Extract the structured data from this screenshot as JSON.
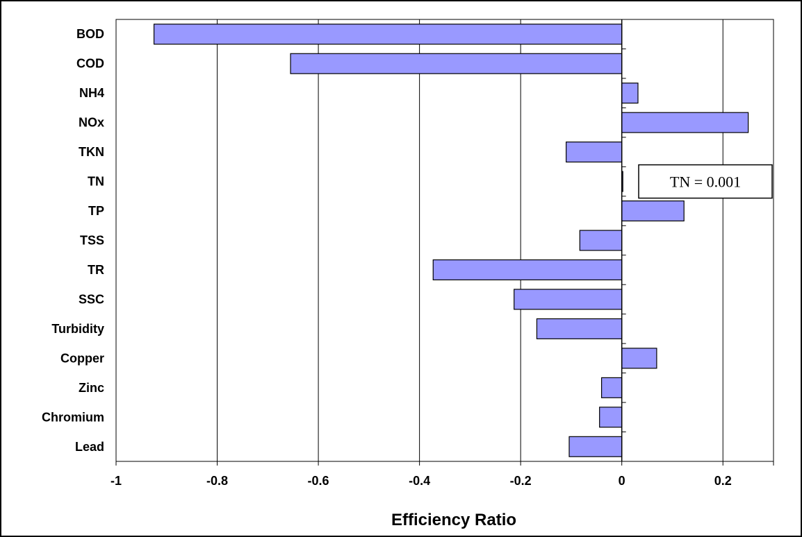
{
  "chart_data": {
    "type": "bar",
    "orientation": "horizontal",
    "categories": [
      "BOD",
      "COD",
      "NH4",
      "NOx",
      "TKN",
      "TN",
      "TP",
      "TSS",
      "TR",
      "SSC",
      "Turbidity",
      "Copper",
      "Zinc",
      "Chromium",
      "Lead"
    ],
    "values": [
      -0.925,
      -0.655,
      0.032,
      0.25,
      -0.11,
      0.001,
      0.123,
      -0.083,
      -0.373,
      -0.213,
      -0.168,
      0.069,
      -0.04,
      -0.044,
      -0.104
    ],
    "xlabel": "Efficiency Ratio",
    "ylabel": "",
    "xlim": [
      -1,
      0.3
    ],
    "xticks": [
      -1,
      -0.8,
      -0.6,
      -0.4,
      -0.2,
      0,
      0.2
    ],
    "xtick_labels": [
      "-1",
      "-0.8",
      "-0.6",
      "-0.4",
      "-0.2",
      "0",
      "0.2"
    ],
    "grid": "vertical",
    "bar_color": "#9999ff",
    "annotation": "TN = 0.001"
  }
}
